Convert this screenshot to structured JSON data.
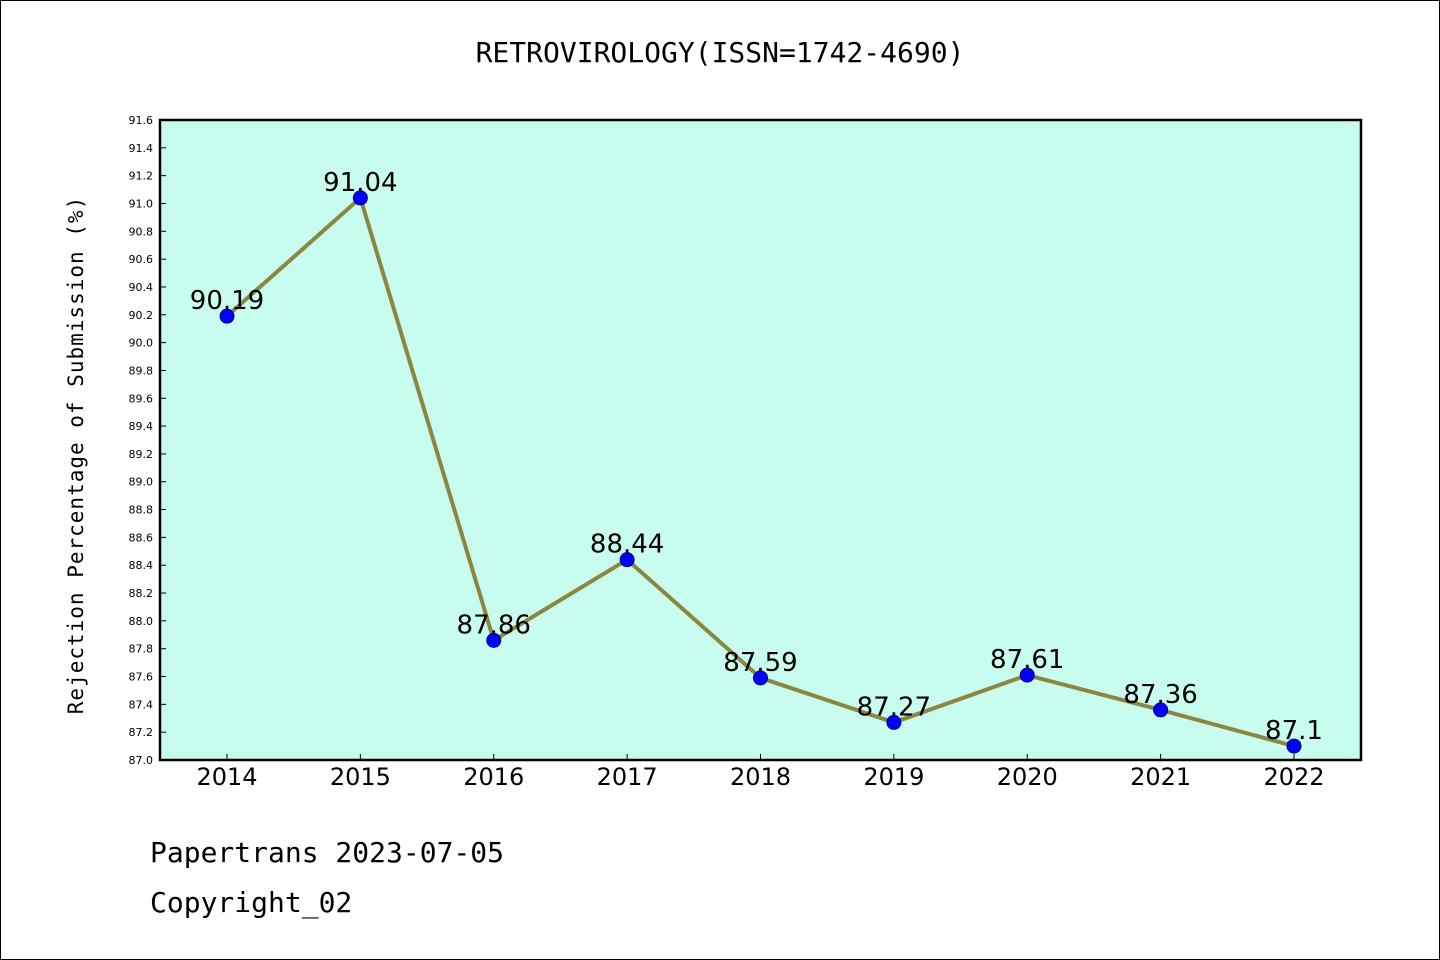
{
  "chart_data": {
    "type": "line",
    "title": "RETROVIROLOGY(ISSN=1742-4690)",
    "xlabel": "",
    "ylabel": "Rejection Percentage of Submission (%)",
    "categories": [
      "2014",
      "2015",
      "2016",
      "2017",
      "2018",
      "2019",
      "2020",
      "2021",
      "2022"
    ],
    "series": [
      {
        "values": [
          90.19,
          91.04,
          87.86,
          88.44,
          87.59,
          87.27,
          87.61,
          87.36,
          87.1
        ]
      }
    ],
    "data_labels": [
      "90.19",
      "91.04",
      "87.86",
      "88.44",
      "87.59",
      "87.27",
      "87.61",
      "87.36",
      "87.1"
    ],
    "ylim": [
      87.0,
      91.6
    ],
    "yticks": [
      "87.0",
      "87.2",
      "87.4",
      "87.6",
      "87.8",
      "88.0",
      "88.2",
      "88.4",
      "88.6",
      "88.8",
      "89.0",
      "89.2",
      "89.4",
      "89.6",
      "89.8",
      "90.0",
      "90.2",
      "90.4",
      "90.6",
      "90.8",
      "91.0",
      "91.2",
      "91.4",
      "91.6"
    ],
    "grid": false,
    "colors": {
      "plot_background": "#c8fcee",
      "line": "#8b8640",
      "marker": "#0000ff"
    }
  },
  "footer": {
    "line1": "Papertrans 2023-07-05",
    "line2": "Copyright_02"
  }
}
